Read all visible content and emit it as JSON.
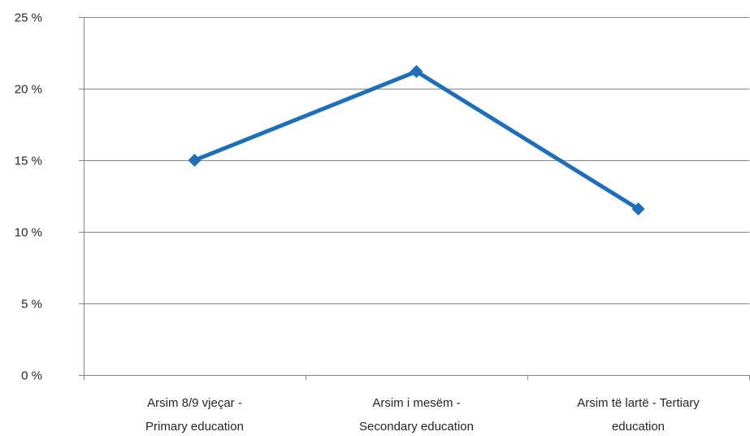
{
  "chart_data": {
    "type": "line",
    "title": "",
    "xlabel": "",
    "ylabel": "",
    "categories": [
      [
        "Arsim 8/9 vjeçar -",
        "Primary education"
      ],
      [
        "Arsim i mesëm  -",
        "Secondary education"
      ],
      [
        "Arsim të lartë  - Tertiary",
        "education"
      ]
    ],
    "series": [
      {
        "values": [
          15.0,
          21.2,
          11.6
        ],
        "color": "#1f6fb8"
      }
    ],
    "yticks": [
      "0 %",
      "5 %",
      "10 %",
      "15 %",
      "20 %",
      "25 %"
    ],
    "ytick_values": [
      0,
      5,
      10,
      15,
      20,
      25
    ],
    "ylim": [
      0,
      25
    ],
    "grid": true,
    "legend": "none",
    "colors": {
      "line": "#1f6fb8",
      "grid": "#888888",
      "axis": "#888888"
    }
  }
}
